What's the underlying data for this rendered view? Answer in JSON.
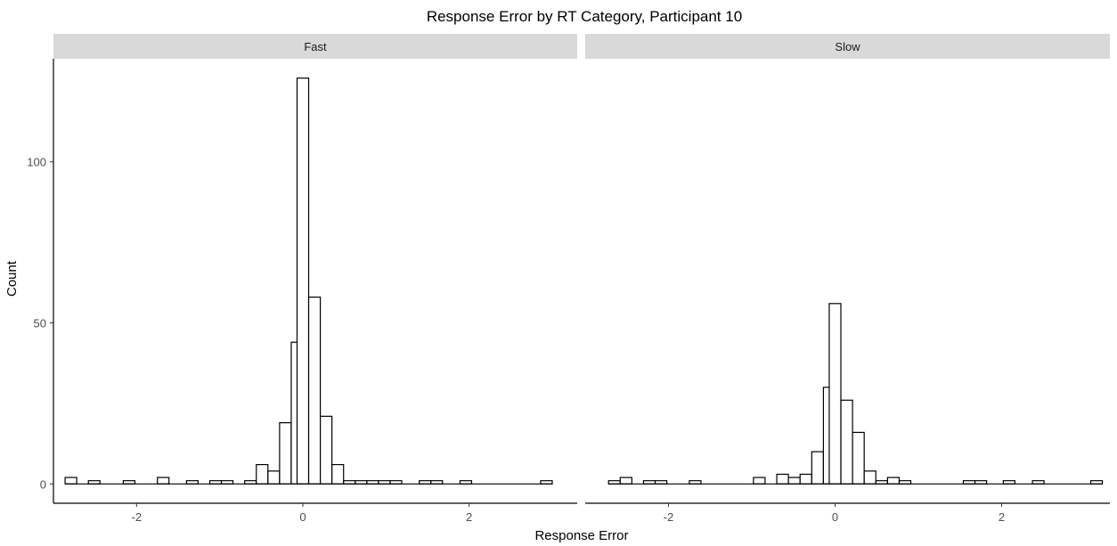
{
  "chart_data": {
    "type": "bar",
    "title": "Response Error by RT Category, Participant 10",
    "xlabel": "Response Error",
    "ylabel": "Count",
    "xlim": [
      -3.0,
      3.3
    ],
    "ylim": [
      -6,
      132
    ],
    "x_ticks": [
      -2,
      0,
      2
    ],
    "x_tick_labels": [
      "-2",
      "0",
      "2"
    ],
    "y_ticks": [
      0,
      50,
      100
    ],
    "y_tick_labels": [
      "0",
      "50",
      "100"
    ],
    "grid": false,
    "colors": {
      "bar_fill": "#ffffff",
      "bar_stroke": "#000000",
      "strip_fill": "#d9d9d9",
      "axis": "#000000"
    },
    "bin_width": 0.1396,
    "panels": [
      {
        "name": "Fast",
        "bins": [
          {
            "x": -2.79,
            "count": 2
          },
          {
            "x": -2.51,
            "count": 1
          },
          {
            "x": -2.09,
            "count": 1
          },
          {
            "x": -1.68,
            "count": 2
          },
          {
            "x": -1.33,
            "count": 1
          },
          {
            "x": -1.05,
            "count": 1
          },
          {
            "x": -0.91,
            "count": 1
          },
          {
            "x": -0.63,
            "count": 1
          },
          {
            "x": -0.49,
            "count": 6
          },
          {
            "x": -0.35,
            "count": 4
          },
          {
            "x": -0.21,
            "count": 19
          },
          {
            "x": -0.07,
            "count": 44
          },
          {
            "x": 0.0,
            "count": 126
          },
          {
            "x": 0.14,
            "count": 58
          },
          {
            "x": 0.28,
            "count": 21
          },
          {
            "x": 0.42,
            "count": 6
          },
          {
            "x": 0.56,
            "count": 1
          },
          {
            "x": 0.7,
            "count": 1
          },
          {
            "x": 0.84,
            "count": 1
          },
          {
            "x": 0.98,
            "count": 1
          },
          {
            "x": 1.12,
            "count": 1
          },
          {
            "x": 1.47,
            "count": 1
          },
          {
            "x": 1.61,
            "count": 1
          },
          {
            "x": 1.96,
            "count": 1
          },
          {
            "x": 2.93,
            "count": 1
          }
        ]
      },
      {
        "name": "Slow",
        "bins": [
          {
            "x": -2.65,
            "count": 1
          },
          {
            "x": -2.51,
            "count": 2
          },
          {
            "x": -2.23,
            "count": 1
          },
          {
            "x": -2.09,
            "count": 1
          },
          {
            "x": -1.68,
            "count": 1
          },
          {
            "x": -0.91,
            "count": 2
          },
          {
            "x": -0.63,
            "count": 3
          },
          {
            "x": -0.49,
            "count": 2
          },
          {
            "x": -0.35,
            "count": 3
          },
          {
            "x": -0.21,
            "count": 10
          },
          {
            "x": -0.07,
            "count": 30
          },
          {
            "x": 0.0,
            "count": 56
          },
          {
            "x": 0.14,
            "count": 26
          },
          {
            "x": 0.28,
            "count": 16
          },
          {
            "x": 0.42,
            "count": 4
          },
          {
            "x": 0.56,
            "count": 1
          },
          {
            "x": 0.7,
            "count": 2
          },
          {
            "x": 0.84,
            "count": 1
          },
          {
            "x": 1.61,
            "count": 1
          },
          {
            "x": 1.75,
            "count": 1
          },
          {
            "x": 2.09,
            "count": 1
          },
          {
            "x": 2.44,
            "count": 1
          },
          {
            "x": 3.14,
            "count": 1
          }
        ]
      }
    ]
  }
}
